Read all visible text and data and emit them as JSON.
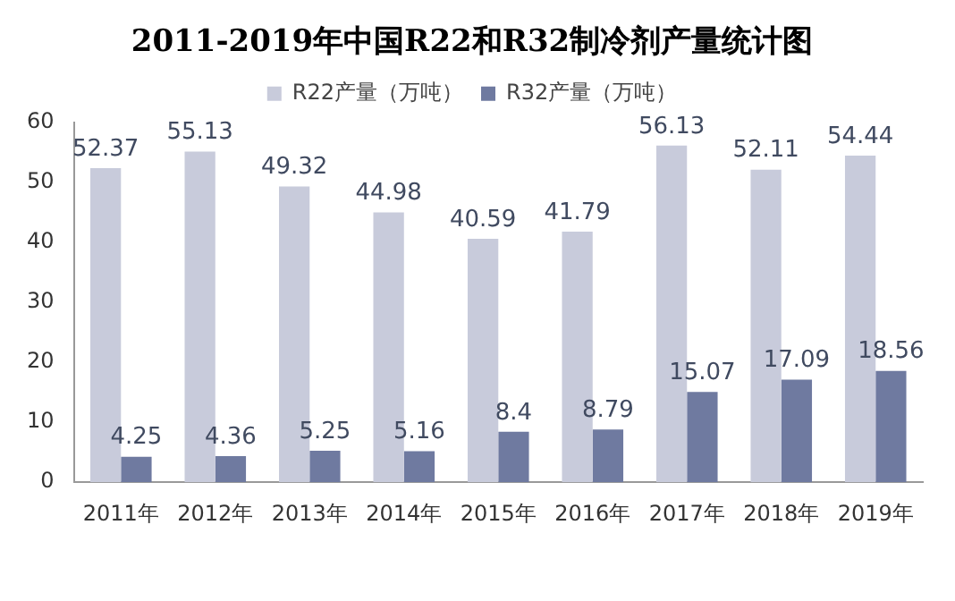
{
  "chart_data": {
    "type": "bar",
    "title": "2011-2019年中国R22和R32制冷剂产量统计图",
    "categories": [
      "2011年",
      "2012年",
      "2013年",
      "2014年",
      "2015年",
      "2016年",
      "2017年",
      "2018年",
      "2019年"
    ],
    "series": [
      {
        "name": "R22产量（万吨）",
        "color": "#c8cbdb",
        "values": [
          52.37,
          55.13,
          49.32,
          44.98,
          40.59,
          41.79,
          56.13,
          52.11,
          54.44
        ]
      },
      {
        "name": "R32产量（万吨）",
        "color": "#6f7aa0",
        "values": [
          4.25,
          4.36,
          5.25,
          5.16,
          8.4,
          8.79,
          15.07,
          17.09,
          18.56
        ]
      }
    ],
    "ylim": [
      0,
      60
    ],
    "yticks": [
      0,
      10,
      20,
      30,
      40,
      50,
      60
    ],
    "grid": false,
    "legend": "top",
    "data_labels": true
  }
}
